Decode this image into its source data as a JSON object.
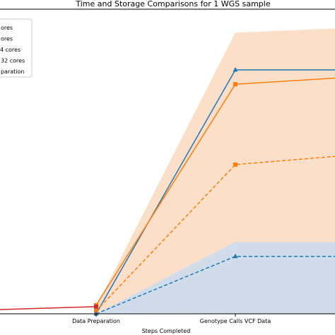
{
  "chart_data": {
    "type": "line",
    "title": "Time and Storage Comparisons for 1 WGS sample",
    "xlabel": "Steps Completed",
    "ylabel": "",
    "categories": [
      "",
      "Data Preparation",
      "Genotype Calls VCF Data",
      ""
    ],
    "visible_category_labels": [
      "Data Preparation",
      "Genotype Calls VCF Data"
    ],
    "ylim": [
      0,
      100
    ],
    "grid": false,
    "legend_position": "top-left",
    "legend_entries": [
      "ores",
      "ores",
      "4 cores",
      "32 cores",
      "paration"
    ],
    "series": [
      {
        "name": "ores",
        "color": "#1f77b4",
        "style": "solid",
        "marker": "triangle",
        "values": [
          null,
          0,
          85,
          85
        ]
      },
      {
        "name": "ores",
        "color": "#ff7f0e",
        "style": "solid",
        "marker": "square",
        "values": [
          null,
          3,
          80,
          83
        ]
      },
      {
        "name": "4 cores",
        "color": "#ff7f0e",
        "style": "dashed",
        "marker": "square",
        "values": [
          null,
          1,
          52,
          56
        ]
      },
      {
        "name": "32 cores",
        "color": "#1f77b4",
        "style": "dashed",
        "marker": "triangle",
        "values": [
          null,
          0,
          20,
          20
        ]
      },
      {
        "name": "paration",
        "color": "#d62728",
        "style": "solid",
        "marker": "square",
        "values": [
          1,
          2.5,
          null,
          null
        ]
      }
    ],
    "bands": [
      {
        "color": "#fbd9bf",
        "lower": [
          null,
          1,
          0,
          0
        ],
        "upper": [
          null,
          2.5,
          98,
          100
        ]
      },
      {
        "color": "#c8dcee",
        "lower": [
          null,
          0,
          0,
          0
        ],
        "upper": [
          null,
          0,
          25,
          25
        ]
      }
    ]
  }
}
